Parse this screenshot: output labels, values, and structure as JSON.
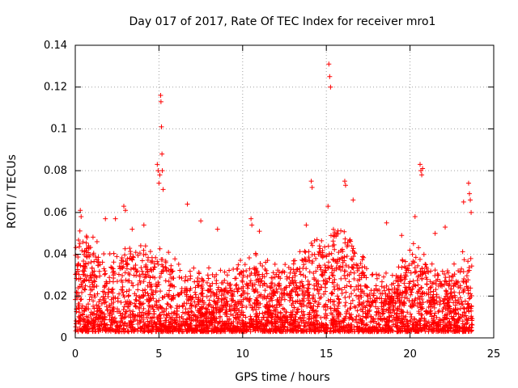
{
  "chart_data": {
    "type": "scatter",
    "title": "Day 017 of 2017, Rate Of TEC Index for receiver mro1",
    "xlabel": "GPS time / hours",
    "ylabel": "ROTI / TECUs",
    "xlim": [
      0,
      25
    ],
    "ylim": [
      0,
      0.14
    ],
    "x_ticks": [
      "0",
      "5",
      "10",
      "15",
      "20",
      "25"
    ],
    "y_ticks": [
      "0",
      "0.02",
      "0.04",
      "0.06",
      "0.08",
      "0.1",
      "0.12",
      "0.14"
    ],
    "grid": true,
    "marker": "+",
    "color": "#ff0000",
    "series": [
      {
        "name": "ROTI",
        "x": [
          0.3,
          0.35,
          0.7,
          1.3,
          1.8,
          2.4,
          2.9,
          3.0,
          3.4,
          4.1,
          4.2,
          4.9,
          4.95,
          5.0,
          5.05,
          5.1,
          5.12,
          5.15,
          5.18,
          5.2,
          5.25,
          6.7,
          7.5,
          8.5,
          10.5,
          10.55,
          11.0,
          13.8,
          14.1,
          14.15,
          15.1,
          15.15,
          15.2,
          15.25,
          16.1,
          16.15,
          16.6,
          18.6,
          19.5,
          20.3,
          20.6,
          20.65,
          20.7,
          20.75,
          21.5,
          22.1,
          23.2,
          23.5,
          23.55,
          23.6,
          23.65
        ],
        "y": [
          0.061,
          0.058,
          0.048,
          0.046,
          0.057,
          0.057,
          0.063,
          0.061,
          0.052,
          0.054,
          0.044,
          0.083,
          0.08,
          0.074,
          0.078,
          0.116,
          0.113,
          0.101,
          0.088,
          0.08,
          0.071,
          0.064,
          0.056,
          0.052,
          0.057,
          0.054,
          0.051,
          0.054,
          0.075,
          0.072,
          0.063,
          0.131,
          0.125,
          0.12,
          0.075,
          0.073,
          0.066,
          0.055,
          0.049,
          0.058,
          0.083,
          0.08,
          0.078,
          0.081,
          0.05,
          0.053,
          0.065,
          0.074,
          0.069,
          0.066,
          0.06
        ]
      }
    ],
    "dense_band": {
      "description_values": {
        "baseline_min": 0.003,
        "typical_max": 0.035,
        "x_range": [
          0,
          23.75
        ]
      }
    }
  }
}
